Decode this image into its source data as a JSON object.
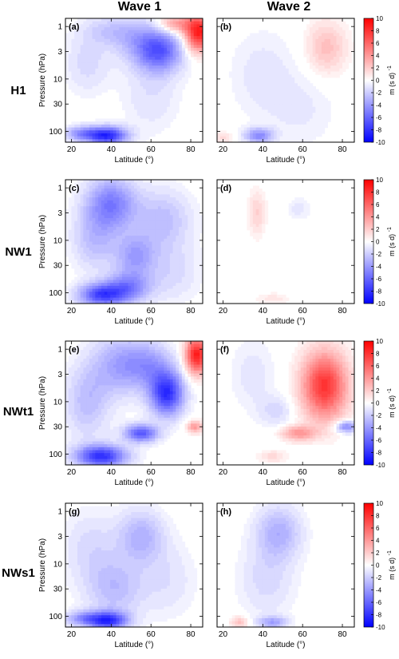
{
  "column_headers": [
    "Wave 1",
    "Wave 2"
  ],
  "row_labels": [
    "H1",
    "NW1",
    "NWt1",
    "NWs1"
  ],
  "colorbar": {
    "ticks": [
      "10",
      "8",
      "6",
      "4",
      "2",
      "0",
      "-2",
      "-4",
      "-6",
      "-8",
      "-10"
    ],
    "label": "m (s d)",
    "label_exponent": "-1",
    "colors": {
      "negative": "#0000ff",
      "zero": "#ffffff",
      "positive": "#ff0000"
    }
  },
  "chart_data": [
    {
      "type": "heatmap",
      "panel": "(a)",
      "row": "H1",
      "column": "Wave 1",
      "xlabel": "Latitude (°)",
      "ylabel": "Pressure (hPa)",
      "xticks": [
        "20",
        "40",
        "60",
        "80"
      ],
      "yticks": [
        "1",
        "3",
        "10",
        "30",
        "100"
      ],
      "xlim": [
        17,
        86
      ],
      "ylim": [
        160,
        0.7
      ],
      "yscale": "log",
      "features": [
        {
          "lat": 38,
          "p": 120,
          "value": -8.5,
          "lat_sd": 7,
          "p_sd": 0.12
        },
        {
          "lat": 25,
          "p": 110,
          "value": -4,
          "lat_sd": 6,
          "p_sd": 0.1
        },
        {
          "lat": 65,
          "p": 3,
          "value": -5.5,
          "lat_sd": 8,
          "p_sd": 0.28
        },
        {
          "lat": 55,
          "p": 2,
          "value": -2.5,
          "lat_sd": 9,
          "p_sd": 0.3
        },
        {
          "lat": 40,
          "p": 1.2,
          "value": -2,
          "lat_sd": 10,
          "p_sd": 0.2
        },
        {
          "lat": 28,
          "p": 5,
          "value": -1.5,
          "lat_sd": 8,
          "p_sd": 0.4
        },
        {
          "lat": 60,
          "p": 20,
          "value": -1.2,
          "lat_sd": 10,
          "p_sd": 0.5
        },
        {
          "lat": 84,
          "p": 1.3,
          "value": 9,
          "lat_sd": 5,
          "p_sd": 0.25
        },
        {
          "lat": 72,
          "p": 0.9,
          "value": 4,
          "lat_sd": 6,
          "p_sd": 0.12
        }
      ]
    },
    {
      "type": "heatmap",
      "panel": "(b)",
      "row": "H1",
      "column": "Wave 2",
      "xlabel": "Latitude (°)",
      "ylabel": "",
      "xticks": [
        "20",
        "40",
        "60",
        "80"
      ],
      "yticks": [],
      "xlim": [
        17,
        86
      ],
      "ylim": [
        160,
        0.7
      ],
      "yscale": "log",
      "features": [
        {
          "lat": 72,
          "p": 2.5,
          "value": 2.5,
          "lat_sd": 7,
          "p_sd": 0.35
        },
        {
          "lat": 38,
          "p": 120,
          "value": -4.5,
          "lat_sd": 5,
          "p_sd": 0.1
        },
        {
          "lat": 40,
          "p": 8,
          "value": -1,
          "lat_sd": 12,
          "p_sd": 0.6
        },
        {
          "lat": 60,
          "p": 40,
          "value": -0.8,
          "lat_sd": 12,
          "p_sd": 0.5
        },
        {
          "lat": 20,
          "p": 130,
          "value": 1.5,
          "lat_sd": 3,
          "p_sd": 0.08
        }
      ]
    },
    {
      "type": "heatmap",
      "panel": "(c)",
      "row": "NW1",
      "column": "Wave 1",
      "xlabel": "Latitude (°)",
      "ylabel": "Pressure (hPa)",
      "xticks": [
        "20",
        "40",
        "60",
        "80"
      ],
      "yticks": [
        "1",
        "3",
        "10",
        "30",
        "100"
      ],
      "xlim": [
        17,
        86
      ],
      "ylim": [
        160,
        0.7
      ],
      "yscale": "log",
      "features": [
        {
          "lat": 35,
          "p": 110,
          "value": -7,
          "lat_sd": 8,
          "p_sd": 0.15
        },
        {
          "lat": 48,
          "p": 80,
          "value": -4.5,
          "lat_sd": 8,
          "p_sd": 0.2
        },
        {
          "lat": 40,
          "p": 2,
          "value": -5,
          "lat_sd": 9,
          "p_sd": 0.35
        },
        {
          "lat": 52,
          "p": 20,
          "value": -3.5,
          "lat_sd": 7,
          "p_sd": 0.3
        },
        {
          "lat": 66,
          "p": 4,
          "value": -2.5,
          "lat_sd": 10,
          "p_sd": 0.4
        },
        {
          "lat": 32,
          "p": 10,
          "value": -2.5,
          "lat_sd": 8,
          "p_sd": 0.4
        },
        {
          "lat": 70,
          "p": 40,
          "value": -1.5,
          "lat_sd": 10,
          "p_sd": 0.4
        }
      ]
    },
    {
      "type": "heatmap",
      "panel": "(d)",
      "row": "NW1",
      "column": "Wave 2",
      "xlabel": "Latitude (°)",
      "ylabel": "",
      "xticks": [
        "20",
        "40",
        "60",
        "80"
      ],
      "yticks": [],
      "xlim": [
        17,
        86
      ],
      "ylim": [
        160,
        0.7
      ],
      "yscale": "log",
      "features": [
        {
          "lat": 37,
          "p": 3,
          "value": 1.8,
          "lat_sd": 3,
          "p_sd": 0.3
        },
        {
          "lat": 58,
          "p": 2.5,
          "value": -1,
          "lat_sd": 4,
          "p_sd": 0.15
        },
        {
          "lat": 45,
          "p": 130,
          "value": 1,
          "lat_sd": 6,
          "p_sd": 0.08
        }
      ]
    },
    {
      "type": "heatmap",
      "panel": "(e)",
      "row": "NWt1",
      "column": "Wave 1",
      "xlabel": "Latitude (°)",
      "ylabel": "Pressure (hPa)",
      "xticks": [
        "20",
        "40",
        "60",
        "80"
      ],
      "yticks": [
        "1",
        "3",
        "10",
        "30",
        "100"
      ],
      "xlim": [
        17,
        86
      ],
      "ylim": [
        160,
        0.7
      ],
      "yscale": "log",
      "features": [
        {
          "lat": 35,
          "p": 110,
          "value": -8,
          "lat_sd": 9,
          "p_sd": 0.15
        },
        {
          "lat": 55,
          "p": 40,
          "value": -6.5,
          "lat_sd": 6,
          "p_sd": 0.12
        },
        {
          "lat": 68,
          "p": 7,
          "value": -8,
          "lat_sd": 6,
          "p_sd": 0.3
        },
        {
          "lat": 45,
          "p": 2,
          "value": -3.5,
          "lat_sd": 10,
          "p_sd": 0.4
        },
        {
          "lat": 28,
          "p": 10,
          "value": -2.5,
          "lat_sd": 8,
          "p_sd": 0.5
        },
        {
          "lat": 60,
          "p": 2,
          "value": -3,
          "lat_sd": 8,
          "p_sd": 0.3
        },
        {
          "lat": 83,
          "p": 1.3,
          "value": 9,
          "lat_sd": 4,
          "p_sd": 0.25
        },
        {
          "lat": 82,
          "p": 30,
          "value": 4,
          "lat_sd": 3,
          "p_sd": 0.08
        }
      ]
    },
    {
      "type": "heatmap",
      "panel": "(f)",
      "row": "NWt1",
      "column": "Wave 2",
      "xlabel": "Latitude (°)",
      "ylabel": "",
      "xticks": [
        "20",
        "40",
        "60",
        "80"
      ],
      "yticks": [],
      "xlim": [
        17,
        86
      ],
      "ylim": [
        160,
        0.7
      ],
      "yscale": "log",
      "features": [
        {
          "lat": 71,
          "p": 5,
          "value": 8,
          "lat_sd": 8,
          "p_sd": 0.45
        },
        {
          "lat": 58,
          "p": 40,
          "value": 4,
          "lat_sd": 6,
          "p_sd": 0.1
        },
        {
          "lat": 82,
          "p": 30,
          "value": -5,
          "lat_sd": 4,
          "p_sd": 0.08
        },
        {
          "lat": 47,
          "p": 15,
          "value": -1.5,
          "lat_sd": 6,
          "p_sd": 0.2
        },
        {
          "lat": 35,
          "p": 3,
          "value": -1,
          "lat_sd": 8,
          "p_sd": 0.5
        },
        {
          "lat": 45,
          "p": 110,
          "value": 1.5,
          "lat_sd": 5,
          "p_sd": 0.08
        }
      ]
    },
    {
      "type": "heatmap",
      "panel": "(g)",
      "row": "NWs1",
      "column": "Wave 1",
      "xlabel": "Latitude (°)",
      "ylabel": "Pressure (hPa)",
      "xticks": [
        "20",
        "40",
        "60",
        "80"
      ],
      "yticks": [
        "1",
        "3",
        "10",
        "30",
        "100"
      ],
      "xlim": [
        17,
        86
      ],
      "ylim": [
        160,
        0.7
      ],
      "yscale": "log",
      "features": [
        {
          "lat": 38,
          "p": 120,
          "value": -8,
          "lat_sd": 7,
          "p_sd": 0.12
        },
        {
          "lat": 25,
          "p": 110,
          "value": -3.5,
          "lat_sd": 6,
          "p_sd": 0.1
        },
        {
          "lat": 55,
          "p": 3,
          "value": -3,
          "lat_sd": 8,
          "p_sd": 0.35
        },
        {
          "lat": 42,
          "p": 30,
          "value": -2.5,
          "lat_sd": 10,
          "p_sd": 0.4
        },
        {
          "lat": 30,
          "p": 5,
          "value": -1.5,
          "lat_sd": 10,
          "p_sd": 0.5
        },
        {
          "lat": 68,
          "p": 20,
          "value": -1.2,
          "lat_sd": 10,
          "p_sd": 0.5
        }
      ]
    },
    {
      "type": "heatmap",
      "panel": "(h)",
      "row": "NWs1",
      "column": "Wave 2",
      "xlabel": "Latitude (°)",
      "ylabel": "",
      "xticks": [
        "20",
        "40",
        "60",
        "80"
      ],
      "yticks": [],
      "xlim": [
        17,
        86
      ],
      "ylim": [
        160,
        0.7
      ],
      "yscale": "log",
      "features": [
        {
          "lat": 48,
          "p": 2.5,
          "value": -3,
          "lat_sd": 8,
          "p_sd": 0.35
        },
        {
          "lat": 42,
          "p": 20,
          "value": -1.5,
          "lat_sd": 10,
          "p_sd": 0.5
        },
        {
          "lat": 45,
          "p": 130,
          "value": -3.5,
          "lat_sd": 5,
          "p_sd": 0.08
        },
        {
          "lat": 28,
          "p": 130,
          "value": 2.5,
          "lat_sd": 3,
          "p_sd": 0.08
        }
      ]
    }
  ]
}
